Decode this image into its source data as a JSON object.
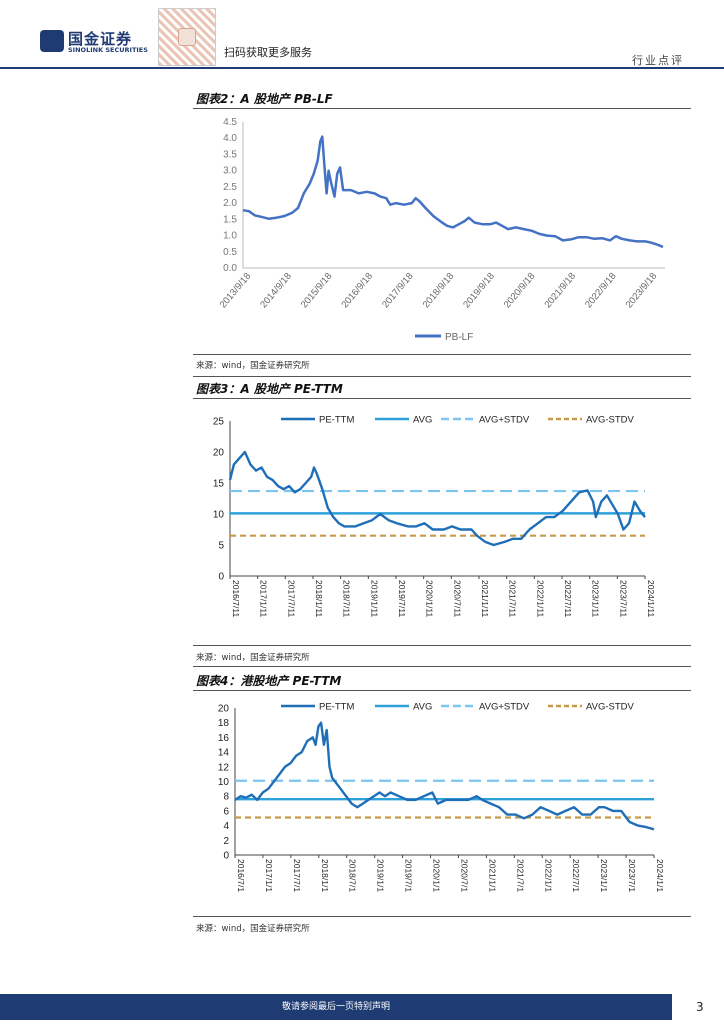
{
  "header": {
    "logo_cn": "国金证券",
    "logo_en": "SINOLINK SECURITIES",
    "scan_text": "扫码获取更多服务",
    "section": "行业点评"
  },
  "figures": [
    {
      "title": "图表2：A 股地产 PB-LF",
      "source": "来源：wind，国金证券研究所"
    },
    {
      "title": "图表3：A 股地产 PE-TTM",
      "source": "来源：wind，国金证券研究所"
    },
    {
      "title": "图表4：港股地产 PE-TTM",
      "source": "来源：wind，国金证券研究所"
    }
  ],
  "footer": {
    "text": "敬请参阅最后一页特别声明",
    "page": "3"
  },
  "colors": {
    "brand": "#1f3b73",
    "series_dark": "#1f6fb8",
    "avg": "#2ea1db",
    "avg_plus": "#7cc5ef",
    "avg_minus": "#c79a4a",
    "pb": "#4472c4"
  },
  "chart_data": [
    {
      "type": "line",
      "title": "图表2：A 股地产 PB-LF",
      "series_name": "PB-LF",
      "ylim": [
        0,
        4.5
      ],
      "y_ticks": [
        "0.0",
        "0.5",
        "1.0",
        "1.5",
        "2.0",
        "2.5",
        "3.0",
        "3.5",
        "4.0",
        "4.5"
      ],
      "x_ticks": [
        "2013/9/18",
        "2014/9/18",
        "2015/9/18",
        "2016/9/18",
        "2017/9/18",
        "2018/9/18",
        "2019/9/18",
        "2020/9/18",
        "2021/9/18",
        "2022/9/18",
        "2023/9/18"
      ],
      "x_range": [
        2013.45,
        2024.2
      ],
      "points": [
        [
          2013.45,
          1.78
        ],
        [
          2013.6,
          1.75
        ],
        [
          2013.75,
          1.62
        ],
        [
          2013.9,
          1.58
        ],
        [
          2014.1,
          1.52
        ],
        [
          2014.3,
          1.55
        ],
        [
          2014.5,
          1.6
        ],
        [
          2014.7,
          1.7
        ],
        [
          2014.85,
          1.85
        ],
        [
          2015.0,
          2.3
        ],
        [
          2015.15,
          2.6
        ],
        [
          2015.25,
          2.9
        ],
        [
          2015.35,
          3.3
        ],
        [
          2015.42,
          3.9
        ],
        [
          2015.47,
          4.05
        ],
        [
          2015.52,
          3.2
        ],
        [
          2015.58,
          2.3
        ],
        [
          2015.63,
          3.0
        ],
        [
          2015.7,
          2.6
        ],
        [
          2015.78,
          2.2
        ],
        [
          2015.85,
          2.9
        ],
        [
          2015.92,
          3.1
        ],
        [
          2016.0,
          2.4
        ],
        [
          2016.2,
          2.4
        ],
        [
          2016.4,
          2.3
        ],
        [
          2016.6,
          2.35
        ],
        [
          2016.8,
          2.3
        ],
        [
          2016.95,
          2.2
        ],
        [
          2017.1,
          2.15
        ],
        [
          2017.2,
          1.95
        ],
        [
          2017.35,
          2.0
        ],
        [
          2017.55,
          1.95
        ],
        [
          2017.75,
          2.0
        ],
        [
          2017.85,
          2.15
        ],
        [
          2017.95,
          2.05
        ],
        [
          2018.1,
          1.85
        ],
        [
          2018.3,
          1.6
        ],
        [
          2018.5,
          1.42
        ],
        [
          2018.65,
          1.3
        ],
        [
          2018.8,
          1.25
        ],
        [
          2018.95,
          1.35
        ],
        [
          2019.1,
          1.45
        ],
        [
          2019.2,
          1.55
        ],
        [
          2019.35,
          1.4
        ],
        [
          2019.55,
          1.35
        ],
        [
          2019.75,
          1.35
        ],
        [
          2019.9,
          1.4
        ],
        [
          2020.05,
          1.3
        ],
        [
          2020.2,
          1.2
        ],
        [
          2020.4,
          1.25
        ],
        [
          2020.6,
          1.2
        ],
        [
          2020.8,
          1.15
        ],
        [
          2021.0,
          1.05
        ],
        [
          2021.2,
          1.0
        ],
        [
          2021.4,
          0.98
        ],
        [
          2021.6,
          0.85
        ],
        [
          2021.8,
          0.88
        ],
        [
          2022.0,
          0.95
        ],
        [
          2022.2,
          0.95
        ],
        [
          2022.4,
          0.9
        ],
        [
          2022.6,
          0.92
        ],
        [
          2022.8,
          0.85
        ],
        [
          2022.95,
          0.98
        ],
        [
          2023.1,
          0.9
        ],
        [
          2023.3,
          0.85
        ],
        [
          2023.5,
          0.82
        ],
        [
          2023.7,
          0.82
        ],
        [
          2023.85,
          0.78
        ],
        [
          2024.0,
          0.72
        ],
        [
          2024.15,
          0.65
        ]
      ]
    },
    {
      "type": "line",
      "title": "图表3：A 股地产 PE-TTM",
      "legend": [
        "PE-TTM",
        "AVG",
        "AVG+STDV",
        "AVG-STDV"
      ],
      "ylim": [
        0,
        25
      ],
      "y_ticks": [
        "0",
        "5",
        "10",
        "15",
        "20",
        "25"
      ],
      "x_ticks": [
        "2016/7/11",
        "2017/1/11",
        "2017/7/11",
        "2018/1/11",
        "2018/7/11",
        "2019/1/11",
        "2019/7/11",
        "2020/1/11",
        "2020/7/11",
        "2021/1/11",
        "2021/7/11",
        "2022/1/11",
        "2022/7/11",
        "2023/1/11",
        "2023/7/11",
        "2024/1/11"
      ],
      "x_range": [
        2016.53,
        2024.04
      ],
      "avg": 10.1,
      "avg_plus_stdv": 13.7,
      "avg_minus_stdv": 6.5,
      "points": [
        [
          2016.53,
          15.5
        ],
        [
          2016.6,
          18.0
        ],
        [
          2016.7,
          19.0
        ],
        [
          2016.8,
          20.0
        ],
        [
          2016.9,
          18.0
        ],
        [
          2017.0,
          17.0
        ],
        [
          2017.1,
          17.5
        ],
        [
          2017.2,
          16.0
        ],
        [
          2017.3,
          15.5
        ],
        [
          2017.4,
          14.5
        ],
        [
          2017.5,
          14.0
        ],
        [
          2017.6,
          14.5
        ],
        [
          2017.7,
          13.5
        ],
        [
          2017.8,
          14.0
        ],
        [
          2017.9,
          15.0
        ],
        [
          2018.0,
          16.0
        ],
        [
          2018.05,
          17.5
        ],
        [
          2018.1,
          16.5
        ],
        [
          2018.2,
          14.0
        ],
        [
          2018.3,
          11.0
        ],
        [
          2018.4,
          9.5
        ],
        [
          2018.5,
          8.5
        ],
        [
          2018.6,
          8.0
        ],
        [
          2018.8,
          8.0
        ],
        [
          2018.95,
          8.5
        ],
        [
          2019.1,
          9.0
        ],
        [
          2019.25,
          10.0
        ],
        [
          2019.4,
          9.0
        ],
        [
          2019.55,
          8.5
        ],
        [
          2019.75,
          8.0
        ],
        [
          2019.9,
          8.0
        ],
        [
          2020.05,
          8.5
        ],
        [
          2020.2,
          7.5
        ],
        [
          2020.4,
          7.5
        ],
        [
          2020.55,
          8.0
        ],
        [
          2020.7,
          7.5
        ],
        [
          2020.9,
          7.5
        ],
        [
          2021.0,
          6.5
        ],
        [
          2021.15,
          5.5
        ],
        [
          2021.3,
          5.0
        ],
        [
          2021.5,
          5.5
        ],
        [
          2021.65,
          6.0
        ],
        [
          2021.8,
          6.0
        ],
        [
          2021.95,
          7.5
        ],
        [
          2022.1,
          8.5
        ],
        [
          2022.25,
          9.5
        ],
        [
          2022.4,
          9.5
        ],
        [
          2022.55,
          10.5
        ],
        [
          2022.7,
          12.0
        ],
        [
          2022.85,
          13.5
        ],
        [
          2023.0,
          13.8
        ],
        [
          2023.1,
          12.0
        ],
        [
          2023.15,
          9.5
        ],
        [
          2023.25,
          12.0
        ],
        [
          2023.35,
          13.0
        ],
        [
          2023.45,
          11.5
        ],
        [
          2023.55,
          10.0
        ],
        [
          2023.65,
          7.5
        ],
        [
          2023.75,
          8.5
        ],
        [
          2023.85,
          12.0
        ],
        [
          2023.95,
          10.5
        ],
        [
          2024.04,
          9.5
        ]
      ]
    },
    {
      "type": "line",
      "title": "图表4：港股地产 PE-TTM",
      "legend": [
        "PE-TTM",
        "AVG",
        "AVG+STDV",
        "AVG-STDV"
      ],
      "ylim": [
        0,
        20
      ],
      "y_ticks": [
        "0",
        "2",
        "4",
        "6",
        "8",
        "10",
        "12",
        "14",
        "16",
        "18",
        "20"
      ],
      "x_ticks": [
        "2016/7/1",
        "2017/1/1",
        "2017/7/1",
        "2018/1/1",
        "2018/7/1",
        "2019/1/1",
        "2019/7/1",
        "2020/1/1",
        "2020/7/1",
        "2021/1/1",
        "2021/7/1",
        "2022/1/1",
        "2022/7/1",
        "2023/1/1",
        "2023/7/1",
        "2024/1/1"
      ],
      "x_range": [
        2016.5,
        2024.04
      ],
      "avg": 7.6,
      "avg_plus_stdv": 10.1,
      "avg_minus_stdv": 5.1,
      "points": [
        [
          2016.5,
          7.5
        ],
        [
          2016.6,
          8.0
        ],
        [
          2016.7,
          7.8
        ],
        [
          2016.8,
          8.2
        ],
        [
          2016.9,
          7.5
        ],
        [
          2017.0,
          8.5
        ],
        [
          2017.1,
          9.0
        ],
        [
          2017.2,
          10.0
        ],
        [
          2017.3,
          11.0
        ],
        [
          2017.4,
          12.0
        ],
        [
          2017.5,
          12.5
        ],
        [
          2017.6,
          13.5
        ],
        [
          2017.7,
          14.0
        ],
        [
          2017.8,
          15.5
        ],
        [
          2017.9,
          16.0
        ],
        [
          2017.95,
          15.0
        ],
        [
          2018.0,
          17.5
        ],
        [
          2018.05,
          18.0
        ],
        [
          2018.1,
          15.0
        ],
        [
          2018.15,
          17.0
        ],
        [
          2018.2,
          12.0
        ],
        [
          2018.25,
          10.5
        ],
        [
          2018.3,
          10.0
        ],
        [
          2018.4,
          9.0
        ],
        [
          2018.5,
          8.0
        ],
        [
          2018.6,
          7.0
        ],
        [
          2018.7,
          6.5
        ],
        [
          2018.8,
          7.0
        ],
        [
          2018.9,
          7.5
        ],
        [
          2019.0,
          8.0
        ],
        [
          2019.1,
          8.5
        ],
        [
          2019.2,
          8.0
        ],
        [
          2019.3,
          8.5
        ],
        [
          2019.45,
          8.0
        ],
        [
          2019.6,
          7.5
        ],
        [
          2019.75,
          7.5
        ],
        [
          2019.9,
          8.0
        ],
        [
          2020.05,
          8.5
        ],
        [
          2020.15,
          7.0
        ],
        [
          2020.3,
          7.5
        ],
        [
          2020.5,
          7.5
        ],
        [
          2020.7,
          7.5
        ],
        [
          2020.85,
          8.0
        ],
        [
          2020.95,
          7.5
        ],
        [
          2021.1,
          7.0
        ],
        [
          2021.25,
          6.5
        ],
        [
          2021.4,
          5.5
        ],
        [
          2021.55,
          5.5
        ],
        [
          2021.7,
          5.0
        ],
        [
          2021.85,
          5.5
        ],
        [
          2022.0,
          6.5
        ],
        [
          2022.15,
          6.0
        ],
        [
          2022.3,
          5.5
        ],
        [
          2022.45,
          6.0
        ],
        [
          2022.6,
          6.5
        ],
        [
          2022.75,
          5.5
        ],
        [
          2022.9,
          5.5
        ],
        [
          2023.05,
          6.5
        ],
        [
          2023.15,
          6.5
        ],
        [
          2023.3,
          6.0
        ],
        [
          2023.45,
          6.0
        ],
        [
          2023.6,
          4.5
        ],
        [
          2023.75,
          4.0
        ],
        [
          2023.9,
          3.8
        ],
        [
          2024.04,
          3.5
        ]
      ]
    }
  ]
}
